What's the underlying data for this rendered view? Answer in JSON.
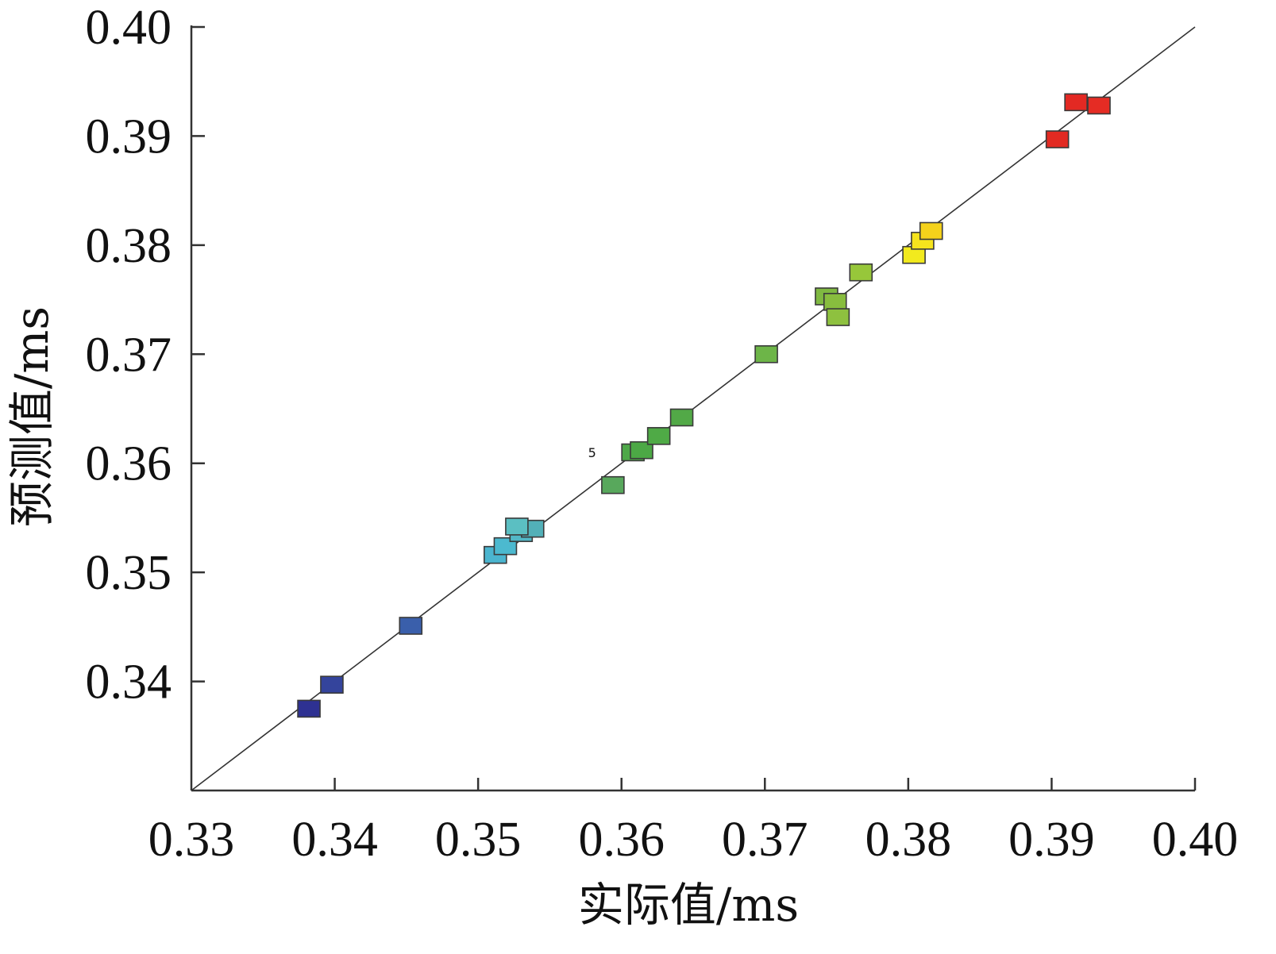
{
  "chart_data": {
    "type": "scatter",
    "xlabel": "实际值/ms",
    "ylabel": "预测值/ms",
    "xlim": [
      0.33,
      0.4
    ],
    "ylim": [
      0.33,
      0.4
    ],
    "x_ticks": [
      0.33,
      0.34,
      0.35,
      0.36,
      0.37,
      0.38,
      0.39,
      0.4
    ],
    "x_tick_labels": [
      "0.33",
      "0.34",
      "0.35",
      "0.36",
      "0.37",
      "0.38",
      "0.39",
      "0.40"
    ],
    "y_ticks": [
      0.34,
      0.35,
      0.36,
      0.37,
      0.38,
      0.39,
      0.4
    ],
    "y_tick_labels": [
      "0.34",
      "0.35",
      "0.36",
      "0.37",
      "0.38",
      "0.39",
      "0.40"
    ],
    "reference_line": {
      "from": [
        0.33,
        0.33
      ],
      "to": [
        0.4,
        0.4
      ],
      "color": "#333333"
    },
    "marker": "square",
    "grid": false,
    "points": [
      {
        "x": 0.3382,
        "y": 0.3375,
        "color": "#2e3192"
      },
      {
        "x": 0.3398,
        "y": 0.3397,
        "color": "#34449c"
      },
      {
        "x": 0.3453,
        "y": 0.3451,
        "color": "#3a5fab"
      },
      {
        "x": 0.3512,
        "y": 0.3516,
        "color": "#4bb5cf"
      },
      {
        "x": 0.3519,
        "y": 0.3524,
        "color": "#4cb9cf"
      },
      {
        "x": 0.353,
        "y": 0.3536,
        "color": "#52b8c6"
      },
      {
        "x": 0.3538,
        "y": 0.354,
        "color": "#52b0b8"
      },
      {
        "x": 0.3527,
        "y": 0.3542,
        "color": "#5bbfc2"
      },
      {
        "x": 0.3594,
        "y": 0.358,
        "color": "#58a85c"
      },
      {
        "x": 0.3608,
        "y": 0.361,
        "color": "#4ea849"
      },
      {
        "x": 0.3614,
        "y": 0.3612,
        "color": "#4ca845"
      },
      {
        "x": 0.3626,
        "y": 0.3625,
        "color": "#4faa46"
      },
      {
        "x": 0.3642,
        "y": 0.3642,
        "color": "#52a947"
      },
      {
        "x": 0.3701,
        "y": 0.37,
        "color": "#6db548"
      },
      {
        "x": 0.3743,
        "y": 0.3753,
        "color": "#7fb941"
      },
      {
        "x": 0.3749,
        "y": 0.3748,
        "color": "#88bd3e"
      },
      {
        "x": 0.3751,
        "y": 0.3734,
        "color": "#8ec13f"
      },
      {
        "x": 0.3767,
        "y": 0.3775,
        "color": "#97c73a"
      },
      {
        "x": 0.3804,
        "y": 0.3791,
        "color": "#f2ea1e"
      },
      {
        "x": 0.381,
        "y": 0.3804,
        "color": "#f6e41d"
      },
      {
        "x": 0.3816,
        "y": 0.3813,
        "color": "#f5d21b"
      },
      {
        "x": 0.3904,
        "y": 0.3897,
        "color": "#e22a22"
      },
      {
        "x": 0.3917,
        "y": 0.3931,
        "color": "#e32923"
      },
      {
        "x": 0.3933,
        "y": 0.3928,
        "color": "#e52c24"
      }
    ],
    "annotations": [
      {
        "text": "5",
        "x": 0.359,
        "y": 0.361
      }
    ]
  }
}
